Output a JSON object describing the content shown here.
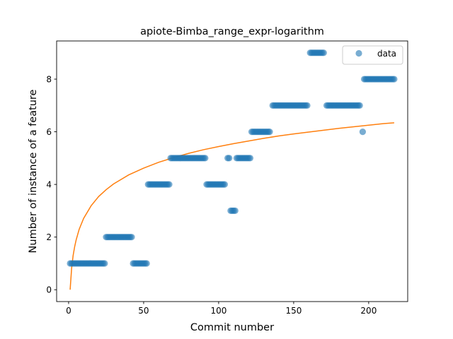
{
  "chart_data": {
    "type": "scatter",
    "title": "apiote-Bimba_range_expr-logarithm",
    "xlabel": "Commit number",
    "ylabel": "Number of instance of a feature",
    "xlim": [
      -8.0,
      226.0
    ],
    "ylim": [
      -0.45,
      9.45
    ],
    "xticks": [
      0,
      50,
      100,
      150,
      200
    ],
    "yticks": [
      0,
      2,
      4,
      6,
      8
    ],
    "grid": false,
    "legend": {
      "placement": "top-right",
      "entries": [
        "data"
      ]
    },
    "colors": {
      "data": "#1f77b4",
      "fit": "#ff7f0e"
    },
    "series": [
      {
        "name": "data",
        "kind": "scatter",
        "points": [
          {
            "x": 1,
            "y": 1
          },
          {
            "x": 2,
            "y": 1
          },
          {
            "x": 3,
            "y": 1
          },
          {
            "x": 4,
            "y": 1
          },
          {
            "x": 5,
            "y": 1
          },
          {
            "x": 6,
            "y": 1
          },
          {
            "x": 7,
            "y": 1
          },
          {
            "x": 8,
            "y": 1
          },
          {
            "x": 9,
            "y": 1
          },
          {
            "x": 10,
            "y": 1
          },
          {
            "x": 11,
            "y": 1
          },
          {
            "x": 12,
            "y": 1
          },
          {
            "x": 13,
            "y": 1
          },
          {
            "x": 14,
            "y": 1
          },
          {
            "x": 15,
            "y": 1
          },
          {
            "x": 16,
            "y": 1
          },
          {
            "x": 17,
            "y": 1
          },
          {
            "x": 18,
            "y": 1
          },
          {
            "x": 19,
            "y": 1
          },
          {
            "x": 20,
            "y": 1
          },
          {
            "x": 21,
            "y": 1
          },
          {
            "x": 22,
            "y": 1
          },
          {
            "x": 23,
            "y": 1
          },
          {
            "x": 24,
            "y": 1
          },
          {
            "x": 25,
            "y": 2
          },
          {
            "x": 26,
            "y": 2
          },
          {
            "x": 27,
            "y": 2
          },
          {
            "x": 28,
            "y": 2
          },
          {
            "x": 29,
            "y": 2
          },
          {
            "x": 30,
            "y": 2
          },
          {
            "x": 31,
            "y": 2
          },
          {
            "x": 32,
            "y": 2
          },
          {
            "x": 33,
            "y": 2
          },
          {
            "x": 34,
            "y": 2
          },
          {
            "x": 35,
            "y": 2
          },
          {
            "x": 36,
            "y": 2
          },
          {
            "x": 37,
            "y": 2
          },
          {
            "x": 38,
            "y": 2
          },
          {
            "x": 39,
            "y": 2
          },
          {
            "x": 40,
            "y": 2
          },
          {
            "x": 41,
            "y": 2
          },
          {
            "x": 42,
            "y": 2
          },
          {
            "x": 43,
            "y": 1
          },
          {
            "x": 44,
            "y": 1
          },
          {
            "x": 45,
            "y": 1
          },
          {
            "x": 46,
            "y": 1
          },
          {
            "x": 47,
            "y": 1
          },
          {
            "x": 48,
            "y": 1
          },
          {
            "x": 49,
            "y": 1
          },
          {
            "x": 50,
            "y": 1
          },
          {
            "x": 51,
            "y": 1
          },
          {
            "x": 52,
            "y": 1
          },
          {
            "x": 53,
            "y": 4
          },
          {
            "x": 54,
            "y": 4
          },
          {
            "x": 55,
            "y": 4
          },
          {
            "x": 56,
            "y": 4
          },
          {
            "x": 57,
            "y": 4
          },
          {
            "x": 58,
            "y": 4
          },
          {
            "x": 59,
            "y": 4
          },
          {
            "x": 60,
            "y": 4
          },
          {
            "x": 61,
            "y": 4
          },
          {
            "x": 62,
            "y": 4
          },
          {
            "x": 63,
            "y": 4
          },
          {
            "x": 64,
            "y": 4
          },
          {
            "x": 65,
            "y": 4
          },
          {
            "x": 66,
            "y": 4
          },
          {
            "x": 67,
            "y": 4
          },
          {
            "x": 68,
            "y": 5
          },
          {
            "x": 69,
            "y": 5
          },
          {
            "x": 70,
            "y": 5
          },
          {
            "x": 71,
            "y": 5
          },
          {
            "x": 72,
            "y": 5
          },
          {
            "x": 73,
            "y": 5
          },
          {
            "x": 74,
            "y": 5
          },
          {
            "x": 75,
            "y": 5
          },
          {
            "x": 76,
            "y": 5
          },
          {
            "x": 77,
            "y": 5
          },
          {
            "x": 78,
            "y": 5
          },
          {
            "x": 79,
            "y": 5
          },
          {
            "x": 80,
            "y": 5
          },
          {
            "x": 81,
            "y": 5
          },
          {
            "x": 82,
            "y": 5
          },
          {
            "x": 83,
            "y": 5
          },
          {
            "x": 84,
            "y": 5
          },
          {
            "x": 85,
            "y": 5
          },
          {
            "x": 86,
            "y": 5
          },
          {
            "x": 87,
            "y": 5
          },
          {
            "x": 88,
            "y": 5
          },
          {
            "x": 89,
            "y": 5
          },
          {
            "x": 90,
            "y": 5
          },
          {
            "x": 91,
            "y": 5
          },
          {
            "x": 92,
            "y": 4
          },
          {
            "x": 93,
            "y": 4
          },
          {
            "x": 94,
            "y": 4
          },
          {
            "x": 95,
            "y": 4
          },
          {
            "x": 96,
            "y": 4
          },
          {
            "x": 97,
            "y": 4
          },
          {
            "x": 98,
            "y": 4
          },
          {
            "x": 99,
            "y": 4
          },
          {
            "x": 100,
            "y": 4
          },
          {
            "x": 101,
            "y": 4
          },
          {
            "x": 102,
            "y": 4
          },
          {
            "x": 103,
            "y": 4
          },
          {
            "x": 104,
            "y": 4
          },
          {
            "x": 106,
            "y": 5
          },
          {
            "x": 107,
            "y": 5
          },
          {
            "x": 108,
            "y": 3
          },
          {
            "x": 109,
            "y": 3
          },
          {
            "x": 110,
            "y": 3
          },
          {
            "x": 111,
            "y": 3
          },
          {
            "x": 112,
            "y": 5
          },
          {
            "x": 113,
            "y": 5
          },
          {
            "x": 114,
            "y": 5
          },
          {
            "x": 115,
            "y": 5
          },
          {
            "x": 116,
            "y": 5
          },
          {
            "x": 117,
            "y": 5
          },
          {
            "x": 118,
            "y": 5
          },
          {
            "x": 119,
            "y": 5
          },
          {
            "x": 120,
            "y": 5
          },
          {
            "x": 121,
            "y": 5
          },
          {
            "x": 122,
            "y": 6
          },
          {
            "x": 123,
            "y": 6
          },
          {
            "x": 124,
            "y": 6
          },
          {
            "x": 125,
            "y": 6
          },
          {
            "x": 126,
            "y": 6
          },
          {
            "x": 127,
            "y": 6
          },
          {
            "x": 128,
            "y": 6
          },
          {
            "x": 129,
            "y": 6
          },
          {
            "x": 130,
            "y": 6
          },
          {
            "x": 131,
            "y": 6
          },
          {
            "x": 132,
            "y": 6
          },
          {
            "x": 133,
            "y": 6
          },
          {
            "x": 134,
            "y": 6
          },
          {
            "x": 136,
            "y": 7
          },
          {
            "x": 137,
            "y": 7
          },
          {
            "x": 138,
            "y": 7
          },
          {
            "x": 139,
            "y": 7
          },
          {
            "x": 140,
            "y": 7
          },
          {
            "x": 141,
            "y": 7
          },
          {
            "x": 142,
            "y": 7
          },
          {
            "x": 143,
            "y": 7
          },
          {
            "x": 144,
            "y": 7
          },
          {
            "x": 145,
            "y": 7
          },
          {
            "x": 146,
            "y": 7
          },
          {
            "x": 147,
            "y": 7
          },
          {
            "x": 148,
            "y": 7
          },
          {
            "x": 149,
            "y": 7
          },
          {
            "x": 150,
            "y": 7
          },
          {
            "x": 151,
            "y": 7
          },
          {
            "x": 152,
            "y": 7
          },
          {
            "x": 153,
            "y": 7
          },
          {
            "x": 154,
            "y": 7
          },
          {
            "x": 155,
            "y": 7
          },
          {
            "x": 156,
            "y": 7
          },
          {
            "x": 157,
            "y": 7
          },
          {
            "x": 158,
            "y": 7
          },
          {
            "x": 159,
            "y": 7
          },
          {
            "x": 161,
            "y": 9
          },
          {
            "x": 162,
            "y": 9
          },
          {
            "x": 163,
            "y": 9
          },
          {
            "x": 164,
            "y": 9
          },
          {
            "x": 165,
            "y": 9
          },
          {
            "x": 166,
            "y": 9
          },
          {
            "x": 167,
            "y": 9
          },
          {
            "x": 168,
            "y": 9
          },
          {
            "x": 169,
            "y": 9
          },
          {
            "x": 170,
            "y": 9
          },
          {
            "x": 172,
            "y": 7
          },
          {
            "x": 173,
            "y": 7
          },
          {
            "x": 174,
            "y": 7
          },
          {
            "x": 175,
            "y": 7
          },
          {
            "x": 176,
            "y": 7
          },
          {
            "x": 177,
            "y": 7
          },
          {
            "x": 178,
            "y": 7
          },
          {
            "x": 179,
            "y": 7
          },
          {
            "x": 180,
            "y": 7
          },
          {
            "x": 181,
            "y": 7
          },
          {
            "x": 182,
            "y": 7
          },
          {
            "x": 183,
            "y": 7
          },
          {
            "x": 184,
            "y": 7
          },
          {
            "x": 185,
            "y": 7
          },
          {
            "x": 186,
            "y": 7
          },
          {
            "x": 187,
            "y": 7
          },
          {
            "x": 188,
            "y": 7
          },
          {
            "x": 189,
            "y": 7
          },
          {
            "x": 190,
            "y": 7
          },
          {
            "x": 191,
            "y": 7
          },
          {
            "x": 192,
            "y": 7
          },
          {
            "x": 193,
            "y": 7
          },
          {
            "x": 194,
            "y": 7
          },
          {
            "x": 196,
            "y": 6
          },
          {
            "x": 197,
            "y": 8
          },
          {
            "x": 198,
            "y": 8
          },
          {
            "x": 199,
            "y": 8
          },
          {
            "x": 200,
            "y": 8
          },
          {
            "x": 201,
            "y": 8
          },
          {
            "x": 202,
            "y": 8
          },
          {
            "x": 203,
            "y": 8
          },
          {
            "x": 204,
            "y": 8
          },
          {
            "x": 205,
            "y": 8
          },
          {
            "x": 206,
            "y": 8
          },
          {
            "x": 207,
            "y": 8
          },
          {
            "x": 208,
            "y": 8
          },
          {
            "x": 209,
            "y": 8
          },
          {
            "x": 210,
            "y": 8
          },
          {
            "x": 211,
            "y": 8
          },
          {
            "x": 212,
            "y": 8
          },
          {
            "x": 213,
            "y": 8
          },
          {
            "x": 214,
            "y": 8
          },
          {
            "x": 215,
            "y": 8
          },
          {
            "x": 216,
            "y": 8
          },
          {
            "x": 217,
            "y": 8
          }
        ]
      },
      {
        "kind": "line",
        "points": [
          {
            "x": 1,
            "y": 0.0
          },
          {
            "x": 2,
            "y": 0.82
          },
          {
            "x": 3,
            "y": 1.3
          },
          {
            "x": 4,
            "y": 1.63
          },
          {
            "x": 5,
            "y": 1.89
          },
          {
            "x": 7,
            "y": 2.29
          },
          {
            "x": 10,
            "y": 2.71
          },
          {
            "x": 15,
            "y": 3.19
          },
          {
            "x": 20,
            "y": 3.54
          },
          {
            "x": 25,
            "y": 3.8
          },
          {
            "x": 30,
            "y": 4.02
          },
          {
            "x": 40,
            "y": 4.36
          },
          {
            "x": 50,
            "y": 4.62
          },
          {
            "x": 60,
            "y": 4.84
          },
          {
            "x": 70,
            "y": 5.02
          },
          {
            "x": 80,
            "y": 5.18
          },
          {
            "x": 90,
            "y": 5.32
          },
          {
            "x": 100,
            "y": 5.44
          },
          {
            "x": 110,
            "y": 5.55
          },
          {
            "x": 120,
            "y": 5.65
          },
          {
            "x": 130,
            "y": 5.75
          },
          {
            "x": 140,
            "y": 5.84
          },
          {
            "x": 150,
            "y": 5.92
          },
          {
            "x": 160,
            "y": 5.99
          },
          {
            "x": 170,
            "y": 6.06
          },
          {
            "x": 180,
            "y": 6.13
          },
          {
            "x": 190,
            "y": 6.19
          },
          {
            "x": 200,
            "y": 6.25
          },
          {
            "x": 210,
            "y": 6.31
          },
          {
            "x": 217,
            "y": 6.34
          }
        ]
      }
    ]
  }
}
